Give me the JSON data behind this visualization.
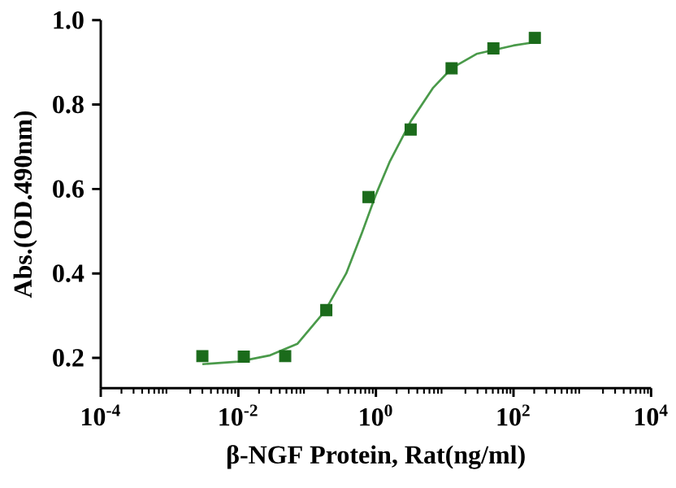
{
  "chart_data": {
    "type": "scatter",
    "xlabel": "β-NGF Protein, Rat(ng/ml)",
    "ylabel": "Abs.(OD.490nm)",
    "log": "x",
    "xlim": [
      0.0001,
      10000
    ],
    "ylim": [
      0.128,
      1.0
    ],
    "xticks": [
      {
        "value": 0.0001,
        "label": "10$^{-4}$"
      },
      {
        "value": 0.01,
        "label": "10$^{-2}$"
      },
      {
        "value": 1,
        "label": "10$^{0}$"
      },
      {
        "value": 100,
        "label": "10$^{2}$"
      },
      {
        "value": 10000,
        "label": "10$^{4}$"
      }
    ],
    "yticks": [
      0.2,
      0.4,
      0.6,
      0.8,
      {
        "value": 1.0,
        "label": "1.0"
      }
    ],
    "series": [
      {
        "marker": "square",
        "color": "#1b6b1b",
        "x": [
          0.003,
          0.012,
          0.048,
          0.19,
          0.78,
          3.2,
          12.6,
          51,
          204
        ],
        "values": [
          0.204,
          0.203,
          0.204,
          0.313,
          0.581,
          0.741,
          0.886,
          0.933,
          0.958
        ]
      },
      {
        "type": "line",
        "marker": "none",
        "line_style": "solid",
        "color": "#4a9a4a",
        "x": [
          0.003,
          0.01,
          0.029,
          0.072,
          0.18,
          0.37,
          0.63,
          1,
          1.58,
          3.2,
          6.8,
          12.6,
          29,
          100,
          209
        ],
        "values": [
          0.185,
          0.191,
          0.206,
          0.233,
          0.31,
          0.4,
          0.497,
          0.587,
          0.664,
          0.76,
          0.84,
          0.886,
          0.92,
          0.94,
          0.948
        ]
      }
    ]
  }
}
